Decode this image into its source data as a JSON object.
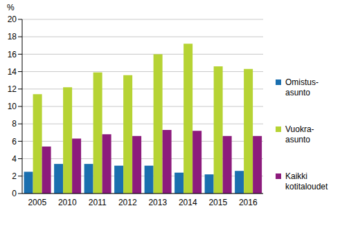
{
  "chart_data": {
    "type": "bar",
    "y_label": "%",
    "categories": [
      "2005",
      "2010",
      "2011",
      "2012",
      "2013",
      "2014",
      "2015",
      "2016"
    ],
    "series": [
      {
        "name": "Omistus-asunto",
        "color": "#1a6faf",
        "values": [
          2.5,
          3.4,
          3.4,
          3.2,
          3.2,
          2.4,
          2.2,
          2.6
        ]
      },
      {
        "name": "Vuokra-asunto",
        "color": "#b6d334",
        "values": [
          11.4,
          12.2,
          13.9,
          13.6,
          16.0,
          17.2,
          14.6,
          14.3
        ]
      },
      {
        "name": "Kaikki kotitaloudet",
        "color": "#8c1b7c",
        "values": [
          5.4,
          6.3,
          6.8,
          6.6,
          7.3,
          7.2,
          6.6,
          6.6
        ]
      }
    ],
    "ylim": [
      0,
      20
    ],
    "yticks": [
      0,
      2,
      4,
      6,
      8,
      10,
      12,
      14,
      16,
      18,
      20
    ],
    "grid": true,
    "legend": "right"
  }
}
